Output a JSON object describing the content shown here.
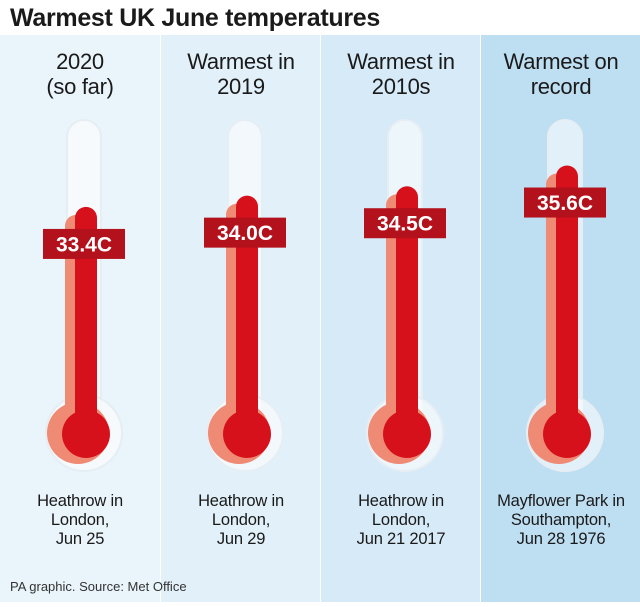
{
  "title": "Warmest UK June temperatures",
  "source": "PA graphic. Source: Met Office",
  "colors": {
    "panel_backgrounds": [
      "#eaf4fb",
      "#e2f0f9",
      "#d6eaf7",
      "#bedef2"
    ],
    "mercury": "#d7111c",
    "mercury_shade": "#ef8a74",
    "label_bg": "#b3111c"
  },
  "chart_data": {
    "type": "bar",
    "title": "Warmest UK June temperatures",
    "categories": [
      "2020\n(so far)",
      "Warmest in\n2019",
      "Warmest in\n2010s",
      "Warmest on\nrecord"
    ],
    "values": [
      33.4,
      34.0,
      34.5,
      35.6
    ],
    "value_labels": [
      "33.4C",
      "34.0C",
      "34.5C",
      "35.6C"
    ],
    "locations": [
      "Heathrow in\nLondon,\nJun 25",
      "Heathrow in\nLondon,\nJun 29",
      "Heathrow in\nLondon,\nJun 21 2017",
      "Mayflower Park in\nSouthampton,\nJun 28 1976"
    ]
  }
}
